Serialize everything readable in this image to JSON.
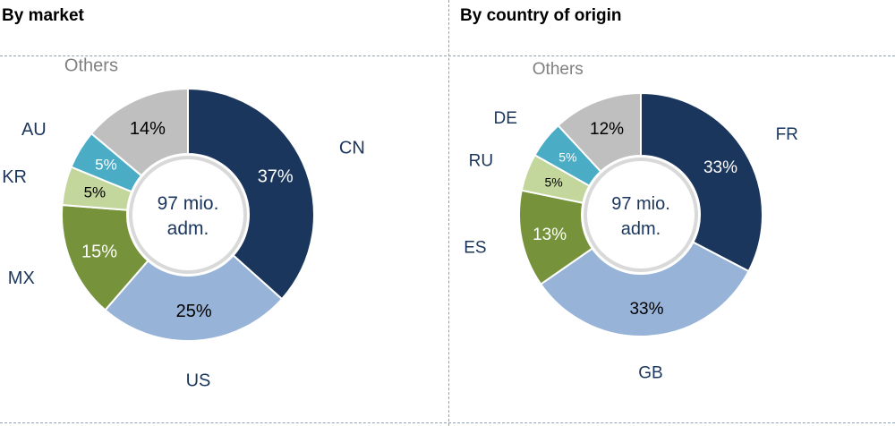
{
  "chart_data": [
    {
      "type": "pie",
      "title": "By market",
      "center_label": [
        "97 mio.",
        "adm."
      ],
      "categories": [
        "CN",
        "US",
        "MX",
        "KR",
        "AU",
        "Others"
      ],
      "values": [
        37,
        25,
        15,
        5,
        5,
        14
      ],
      "value_labels": [
        "37%",
        "25%",
        "15%",
        "5%",
        "5%",
        "14%"
      ],
      "colors": [
        "#1b365d",
        "#97b4d8",
        "#76933c",
        "#c3d69b",
        "#4bacc6",
        "#bfbfbf"
      ],
      "label_colors": [
        "#1b365d",
        "#1b365d",
        "#1b365d",
        "#1b365d",
        "#1b365d",
        "#808080"
      ],
      "value_text_colors": [
        "#ffffff",
        "#000000",
        "#ffffff",
        "#000000",
        "#ffffff",
        "#000000"
      ]
    },
    {
      "type": "pie",
      "title": "By country of origin",
      "center_label": [
        "97 mio.",
        "adm."
      ],
      "categories": [
        "FR",
        "GB",
        "ES",
        "RU",
        "DE",
        "Others"
      ],
      "values": [
        33,
        33,
        13,
        5,
        5,
        12
      ],
      "value_labels": [
        "33%",
        "33%",
        "13%",
        "5%",
        "5%",
        "12%"
      ],
      "colors": [
        "#1b365d",
        "#97b4d8",
        "#76933c",
        "#c3d69b",
        "#4bacc6",
        "#bfbfbf"
      ],
      "label_colors": [
        "#1b365d",
        "#1b365d",
        "#1b365d",
        "#1b365d",
        "#1b365d",
        "#808080"
      ],
      "value_text_colors": [
        "#ffffff",
        "#000000",
        "#ffffff",
        "#000000",
        "#ffffff",
        "#000000"
      ]
    }
  ]
}
